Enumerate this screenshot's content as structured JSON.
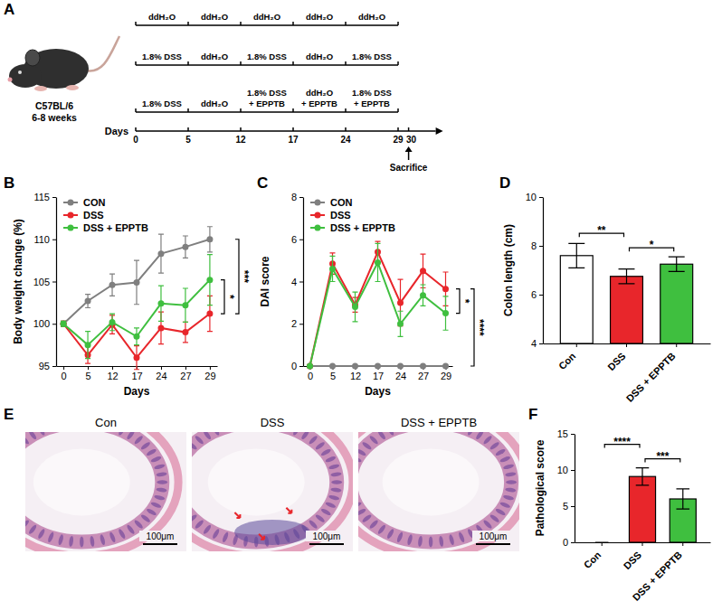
{
  "panel_labels": [
    "A",
    "B",
    "C",
    "D",
    "E",
    "F"
  ],
  "diagram": {
    "strain": "C57BL/6",
    "age": "6-8 weeks",
    "axis_label": "Days",
    "days": [
      0,
      5,
      12,
      17,
      24,
      29,
      30
    ],
    "segment_days": [
      0,
      5,
      12,
      17,
      24,
      29
    ],
    "rows": [
      [
        "ddH₂O",
        "ddH₂O",
        "ddH₂O",
        "ddH₂O",
        "ddH₂O"
      ],
      [
        "1.8% DSS",
        "ddH₂O",
        "1.8% DSS",
        "ddH₂O",
        "1.8% DSS"
      ],
      [
        "1.8% DSS",
        "ddH₂O",
        "1.8% DSS + EPPTB",
        "ddH₂O + EPPTB",
        "1.8% DSS + EPPTB"
      ]
    ],
    "event": "Sacrifice",
    "event_day": 30
  },
  "chart_data": [
    {
      "type": "line",
      "x_label": "Days",
      "y_label": "Body weight change (%)",
      "categories": [
        "0",
        "5",
        "12",
        "17",
        "24",
        "27",
        "29"
      ],
      "marker": "circle",
      "legend": "top-left",
      "ylim": [
        95,
        115
      ],
      "yticks": [
        95,
        100,
        105,
        110,
        115
      ],
      "series": [
        {
          "name": "CON",
          "color": "#7f7f7f",
          "values": [
            100,
            102.7,
            104.6,
            104.9,
            108.3,
            109.1,
            110
          ],
          "errors": [
            0.3,
            0.8,
            1.3,
            2.6,
            2.3,
            1.3,
            1.5
          ]
        },
        {
          "name": "DSS",
          "color": "#e8262b",
          "values": [
            100,
            96.3,
            99.9,
            96.0,
            99.5,
            99.0,
            101.2
          ],
          "errors": [
            0.3,
            1.0,
            1.1,
            1.4,
            1.9,
            1.2,
            2.1
          ]
        },
        {
          "name": "DSS + EPPTB",
          "color": "#3fbf3f",
          "values": [
            100,
            97.5,
            100.2,
            98.5,
            102.4,
            102.2,
            105.2
          ],
          "errors": [
            0.3,
            1.6,
            1.0,
            1.0,
            2.1,
            2.0,
            3.0
          ]
        }
      ],
      "annotations": [
        {
          "text": "*",
          "between": [
            1,
            2
          ]
        },
        {
          "text": "***",
          "between": [
            0,
            1
          ]
        }
      ]
    },
    {
      "type": "line",
      "x_label": "Days",
      "y_label": "DAI score",
      "categories": [
        "0",
        "5",
        "12",
        "17",
        "24",
        "27",
        "29"
      ],
      "marker": "circle",
      "legend": "top-left",
      "ylim": [
        0,
        8
      ],
      "yticks": [
        0,
        2,
        4,
        6,
        8
      ],
      "series": [
        {
          "name": "CON",
          "color": "#7f7f7f",
          "values": [
            0,
            0,
            0,
            0,
            0,
            0,
            0
          ],
          "errors": [
            0,
            0,
            0,
            0,
            0,
            0,
            0
          ]
        },
        {
          "name": "DSS",
          "color": "#e8262b",
          "values": [
            0,
            4.85,
            2.9,
            5.4,
            3.0,
            4.5,
            3.65
          ],
          "errors": [
            0,
            0.5,
            0.35,
            0.5,
            1.1,
            0.8,
            0.8
          ]
        },
        {
          "name": "DSS + EPPTB",
          "color": "#3fbf3f",
          "values": [
            0,
            4.6,
            2.8,
            4.9,
            2.0,
            3.35,
            2.5
          ],
          "errors": [
            0,
            0.6,
            0.7,
            0.9,
            0.6,
            0.5,
            0.8
          ]
        }
      ],
      "annotations": [
        {
          "text": "*",
          "between": [
            1,
            2
          ]
        },
        {
          "text": "****",
          "between": [
            0,
            1
          ]
        }
      ]
    },
    {
      "type": "bar",
      "y_label": "Colon length (cm)",
      "categories": [
        "Con",
        "DSS",
        "DSS + EPPTB"
      ],
      "values": [
        7.6,
        6.75,
        7.25
      ],
      "errors": [
        0.5,
        0.3,
        0.3
      ],
      "colors": [
        "#ffffff",
        "#e8262b",
        "#3fbf3f"
      ],
      "ylim": [
        4,
        10
      ],
      "yticks": [
        4,
        6,
        8,
        10
      ],
      "annotations": [
        {
          "text": "*",
          "between": [
            1,
            2
          ]
        },
        {
          "text": "**",
          "between": [
            0,
            1
          ]
        }
      ]
    },
    {
      "type": "bar",
      "y_label": "Pathological score",
      "categories": [
        "Con",
        "DSS",
        "DSS + EPPTB"
      ],
      "values": [
        0,
        9.1,
        6.0
      ],
      "errors": [
        0,
        1.2,
        1.4
      ],
      "colors": [
        "#ffffff",
        "#e8262b",
        "#3fbf3f"
      ],
      "ylim": [
        0,
        15
      ],
      "yticks": [
        0,
        5,
        10,
        15
      ],
      "annotations": [
        {
          "text": "***",
          "between": [
            1,
            2
          ]
        },
        {
          "text": "****",
          "between": [
            0,
            1
          ]
        }
      ]
    }
  ],
  "images": {
    "titles": [
      "Con",
      "DSS",
      "DSS + EPPTB"
    ],
    "scale_bar": "100μm"
  }
}
